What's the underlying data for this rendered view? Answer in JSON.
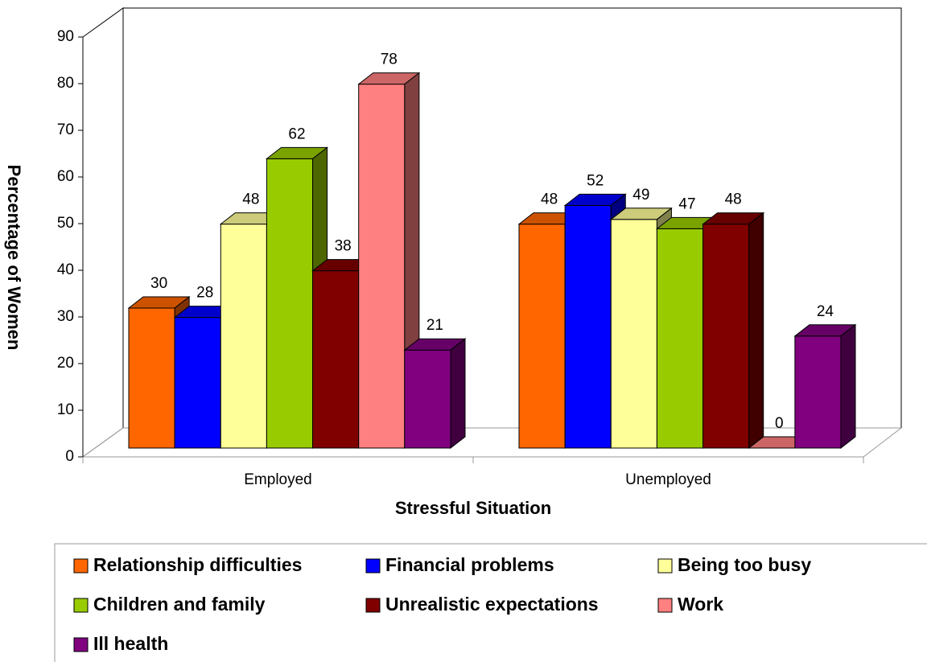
{
  "chart_data": {
    "type": "bar3d",
    "x_label": "Stressful Situation",
    "y_label": "Percentage of Women",
    "categories": [
      "Employed",
      "Unemployed"
    ],
    "series": [
      {
        "name": "Relationship difficulties",
        "color": "#ff6600",
        "values": [
          30,
          48
        ]
      },
      {
        "name": "Financial problems",
        "color": "#0000ff",
        "values": [
          28,
          52
        ]
      },
      {
        "name": "Being too busy",
        "color": "#ffff99",
        "values": [
          48,
          49
        ]
      },
      {
        "name": "Children and family",
        "color": "#99cc00",
        "values": [
          62,
          47
        ]
      },
      {
        "name": "Unrealistic expectations",
        "color": "#800000",
        "values": [
          38,
          48
        ]
      },
      {
        "name": "Work",
        "color": "#ff8080",
        "values": [
          78,
          0
        ]
      },
      {
        "name": "Ill health",
        "color": "#800080",
        "values": [
          21,
          24
        ]
      }
    ],
    "ylim": [
      0,
      90
    ],
    "yticks": [
      0,
      10,
      20,
      30,
      40,
      50,
      60,
      70,
      80,
      90
    ],
    "legend": "bottom"
  }
}
